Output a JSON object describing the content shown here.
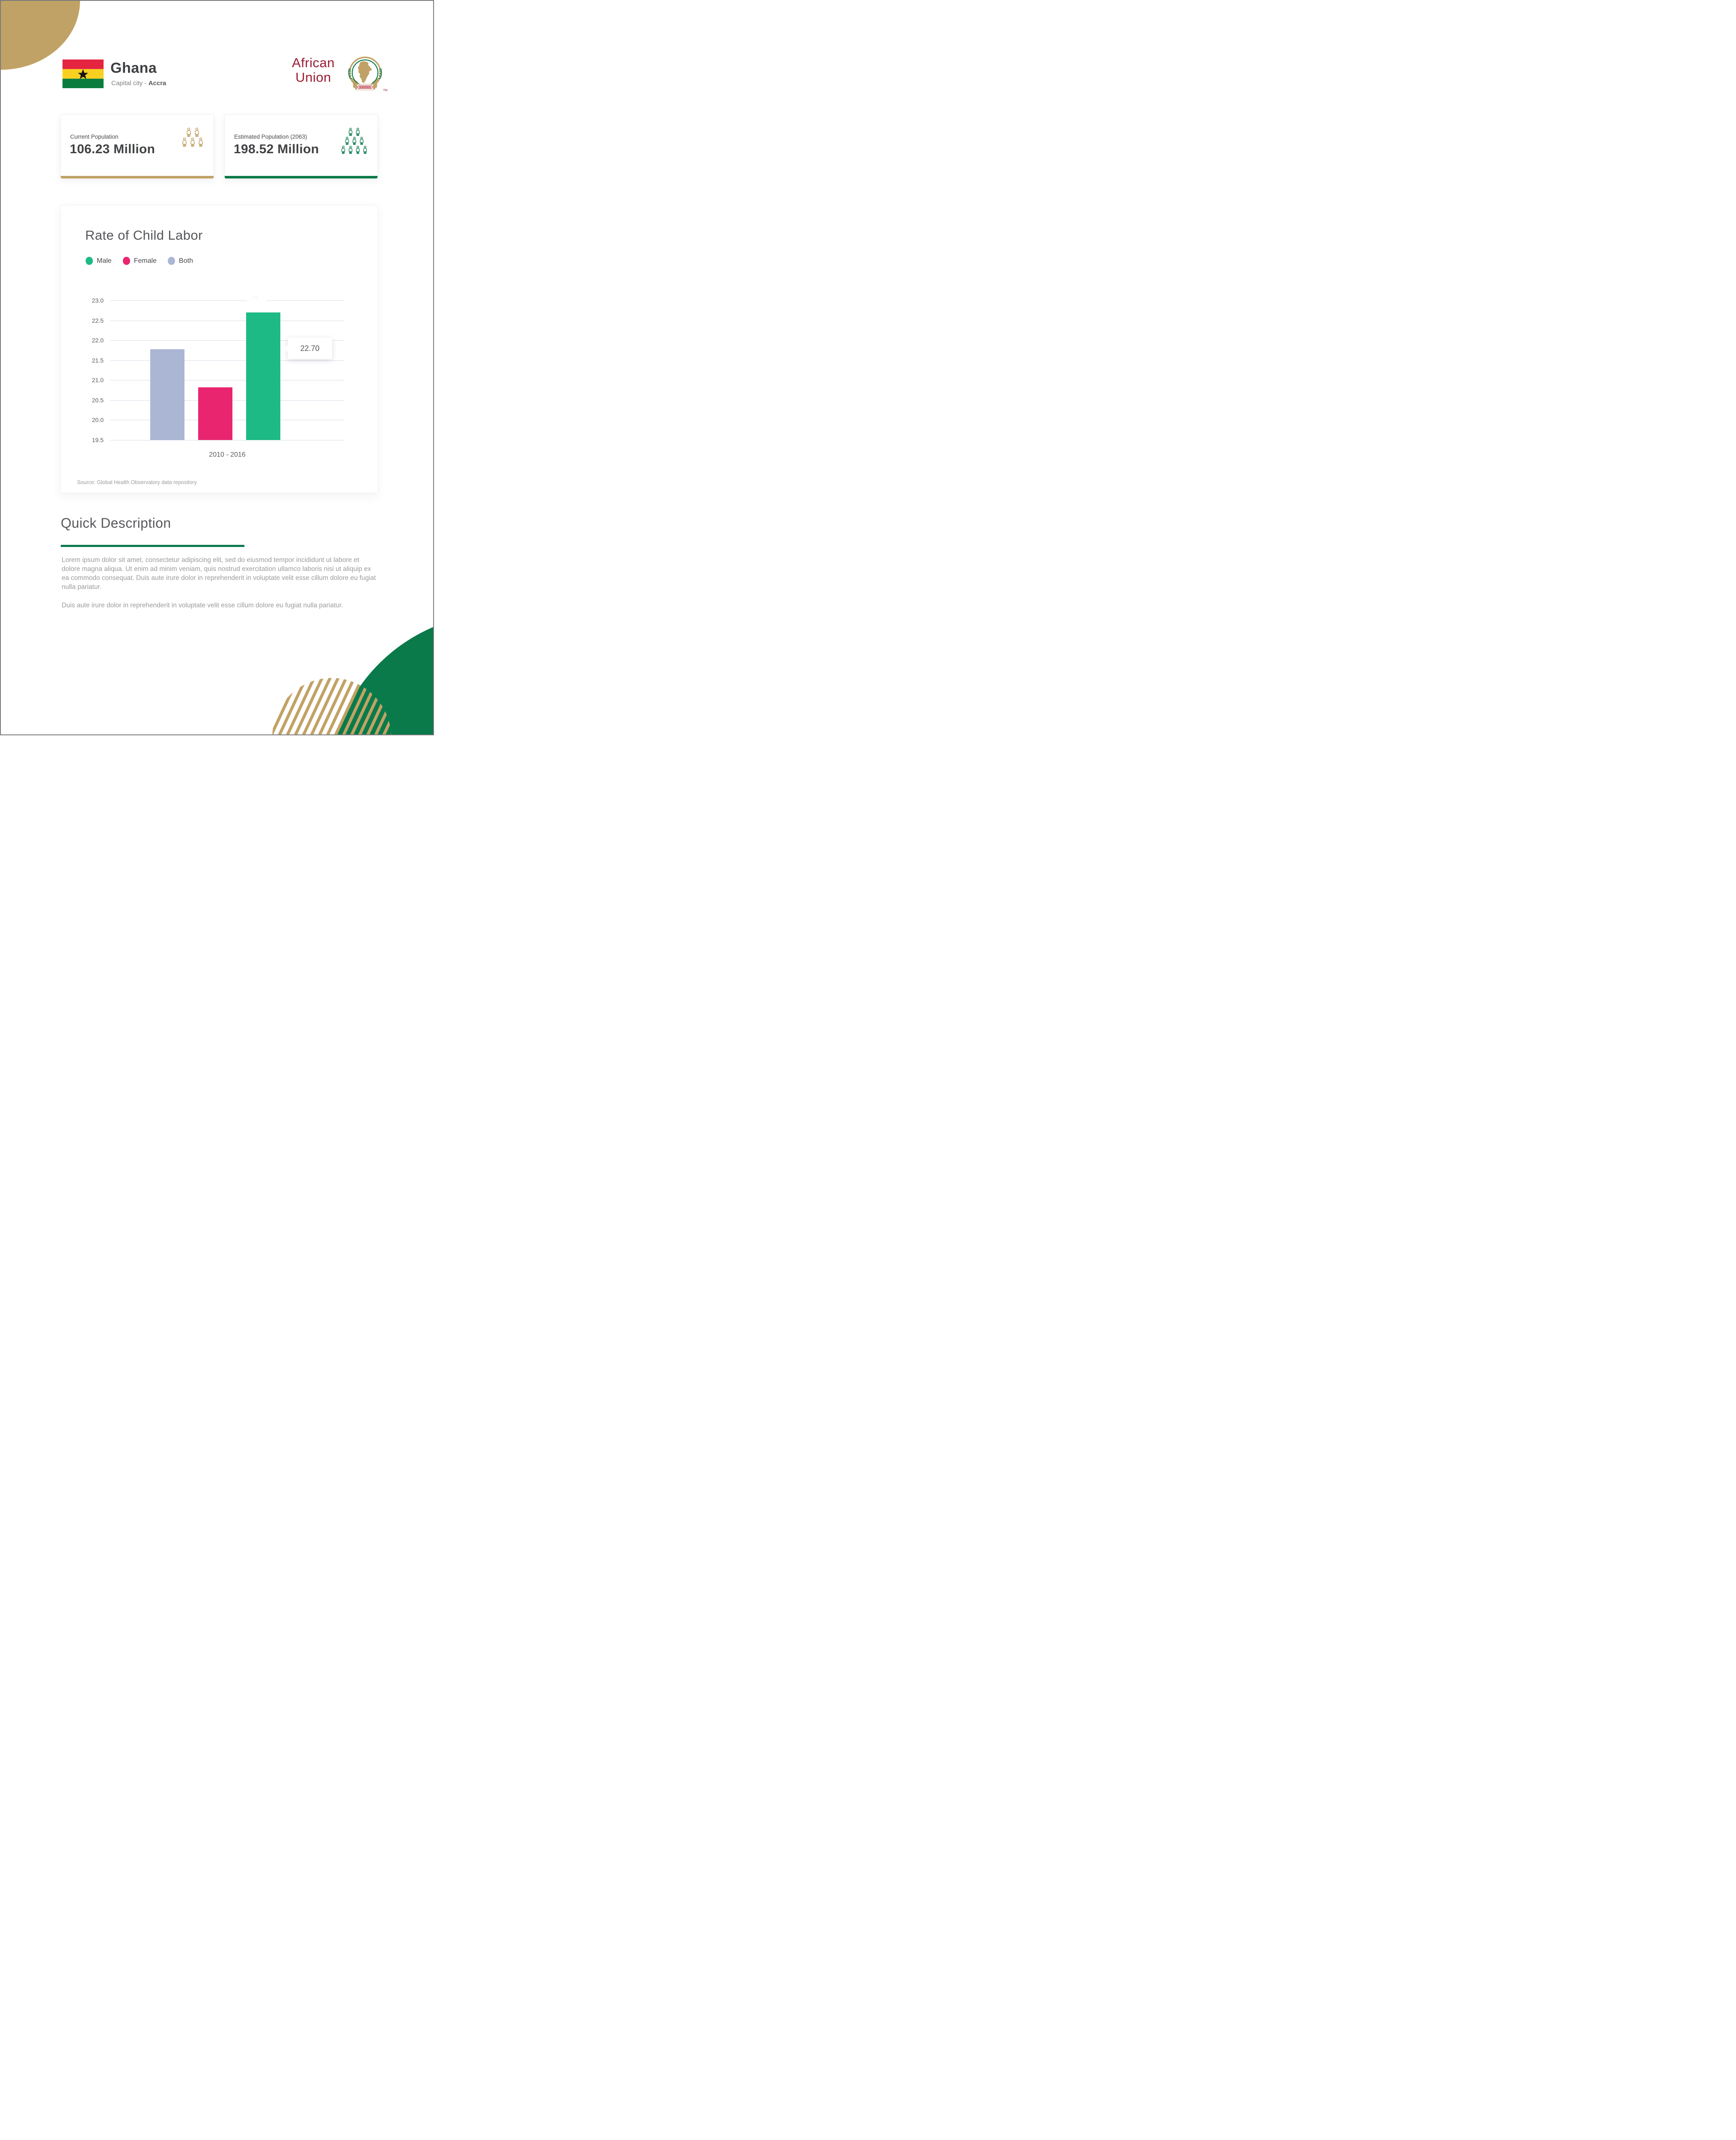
{
  "header": {
    "country": "Ghana",
    "capital_label": "Capital city - ",
    "capital": "Accra",
    "org_line1": "African",
    "org_line2": "Union",
    "org_tm": "TM"
  },
  "stats": [
    {
      "label": "Current Population",
      "value": "106.23 Million",
      "accent": "#c1a266",
      "icon_rows": [
        2,
        3
      ]
    },
    {
      "label": "Estimated Population (2063)",
      "value": "198.52 Million",
      "accent": "#0a7a4b",
      "icon_rows": [
        2,
        3,
        4
      ]
    }
  ],
  "chart_card": {
    "title": "Rate of Child Labor",
    "legend": [
      {
        "label": "Male",
        "color": "#1eba85"
      },
      {
        "label": "Female",
        "color": "#e9256f"
      },
      {
        "label": "Both",
        "color": "#aab6d3"
      }
    ],
    "tooltip": "22.70",
    "source": "Source: Global Health Observatory data repository"
  },
  "chart_data": {
    "type": "bar",
    "title": "Rate of Child Labor",
    "categories": [
      "2010 - 2016"
    ],
    "series": [
      {
        "name": "Both",
        "value": 21.78,
        "color": "#aab6d3"
      },
      {
        "name": "Female",
        "value": 20.82,
        "color": "#e9256f"
      },
      {
        "name": "Male",
        "value": 22.7,
        "color": "#1eba85"
      }
    ],
    "ylim": [
      19.5,
      23.0
    ],
    "yticks": [
      "23.0",
      "22.5",
      "22.0",
      "21.5",
      "21.0",
      "20.5",
      "20.0",
      "19.5"
    ],
    "xlabel": "2010 - 2016",
    "ylabel": "",
    "grid": true,
    "legend_position": "top-left",
    "annotation": {
      "series": "Male",
      "text": "22.70"
    }
  },
  "description": {
    "heading": "Quick Description",
    "paragraphs": [
      "Lorem ipsum dolor sit amet, consectetur adipiscing elit, sed do eiusmod tempor incididunt ut labore et dolore magna aliqua. Ut enim ad minim veniam, quis nostrud exercitation ullamco laboris nisi ut aliquip ex ea commodo consequat. Duis aute irure dolor in reprehenderit in voluptate velit esse cillum dolore eu fugiat nulla pariatur.",
      "Duis aute irure dolor in reprehenderit in voluptate velit esse cillum dolore eu fugiat nulla pariatur."
    ]
  },
  "colors": {
    "gold": "#c1a266",
    "au_maroon": "#9b1c34",
    "au_green": "#0a7a4b",
    "male_green": "#1eba85",
    "female_pink": "#e9256f",
    "both_blue": "#aab6d3",
    "gridline": "#d9dde9",
    "flag_red": "#e5243f",
    "flag_yellow": "#f8d022",
    "flag_green": "#0a7d3e"
  }
}
